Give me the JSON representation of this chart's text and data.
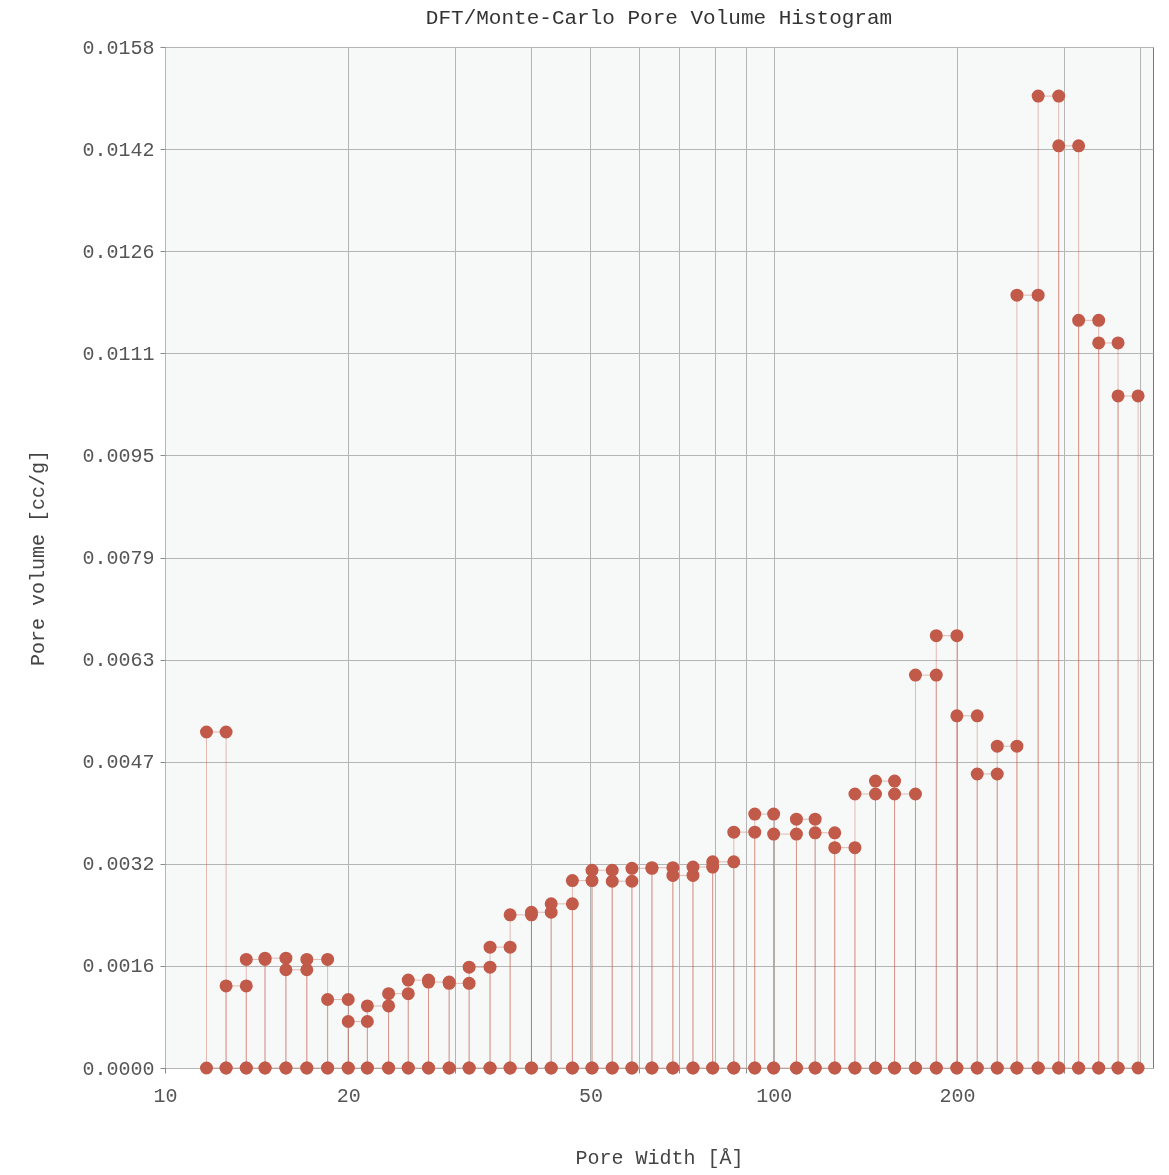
{
  "chart_data": {
    "type": "histogram",
    "title": "DFT/Monte-Carlo Pore Volume Histogram",
    "xlabel": "Pore Width [Å]",
    "ylabel": "Pore volume [cc/g]",
    "bins": [
      11.7,
      12.6,
      13.6,
      14.6,
      15.8,
      17.1,
      18.5,
      20.0,
      21.5,
      23.3,
      25.1,
      27.1,
      29.3,
      31.6,
      34.2,
      36.9,
      40.0,
      43.1,
      46.7,
      50.3,
      54.3,
      58.5,
      63.1,
      68.3,
      73.7,
      79.4,
      86.0,
      93.1,
      100,
      109,
      117,
      126,
      136,
      147,
      158,
      171,
      185,
      200,
      216,
      233,
      251,
      272,
      294,
      317,
      342,
      368,
      397
    ],
    "values": [
      0.0052,
      0.00127,
      0.00168,
      0.0017,
      0.00152,
      0.00168,
      0.00106,
      0.00072,
      0.00096,
      0.00115,
      0.00136,
      0.00133,
      0.00131,
      0.00156,
      0.00187,
      0.00237,
      0.00241,
      0.00254,
      0.0029,
      0.00306,
      0.00289,
      0.00309,
      0.0031,
      0.00298,
      0.00311,
      0.00319,
      0.00365,
      0.00393,
      0.00362,
      0.00385,
      0.00364,
      0.00341,
      0.00424,
      0.00444,
      0.00424,
      0.00608,
      0.00669,
      0.00545,
      0.00455,
      0.00498,
      0.01196,
      0.01504,
      0.01427,
      0.01157,
      0.01122,
      0.0104
    ],
    "color": "#c25a4a",
    "marker": "circle",
    "log": "x",
    "grid": true,
    "xlim": [
      10,
      420
    ],
    "xticks": [
      10,
      20,
      {
        "value": 30,
        "label": null
      },
      {
        "value": 40,
        "label": null
      },
      50,
      {
        "value": 60,
        "label": null
      },
      {
        "value": 70,
        "label": null
      },
      {
        "value": 80,
        "label": null
      },
      {
        "value": 90,
        "label": null
      },
      100,
      200,
      {
        "value": 300,
        "label": null
      },
      {
        "value": 400,
        "label": null
      }
    ],
    "ylim": [
      0,
      0.0158
    ],
    "yticks": [
      {
        "value": 0,
        "label": "0.0000"
      },
      {
        "value": 0.00158,
        "label": "0.0016"
      },
      {
        "value": 0.00316,
        "label": "0.0032"
      },
      {
        "value": 0.00474,
        "label": "0.0047"
      },
      {
        "value": 0.00632,
        "label": "0.0063"
      },
      0.0079,
      {
        "value": 0.00948,
        "label": "0.0095"
      },
      {
        "value": 0.01106,
        "label": "0.0111"
      },
      {
        "value": 0.01264,
        "label": "0.0126"
      },
      {
        "value": 0.01422,
        "label": "0.0142"
      },
      0.0158
    ]
  }
}
